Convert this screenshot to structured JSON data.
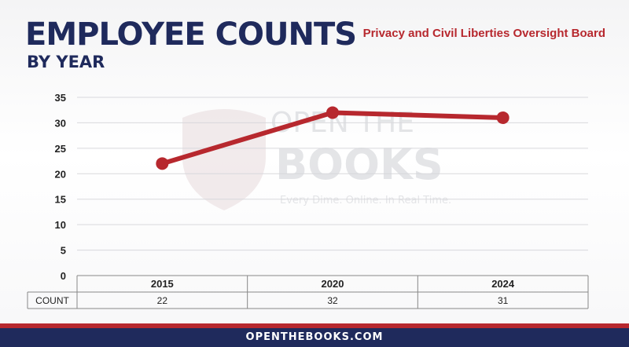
{
  "header": {
    "title": "EMPLOYEE COUNTS",
    "subtitle": "BY YEAR",
    "agency": "Privacy and Civil Liberties Oversight Board"
  },
  "watermark": {
    "line1": "OPEN THE",
    "line2": "BOOKS",
    "tagline": "Every Dime. Online. In Real Time.",
    "icon": "shield-flag-icon"
  },
  "chart_data": {
    "type": "line",
    "categories": [
      "2015",
      "2020",
      "2024"
    ],
    "series": [
      {
        "values": [
          22,
          32,
          31
        ]
      }
    ],
    "ylim": [
      0,
      35
    ],
    "yticks": [
      "0",
      "5",
      "10",
      "15",
      "20",
      "25",
      "30",
      "35"
    ],
    "table": {
      "row_label": "COUNT",
      "values": [
        "22",
        "32",
        "31"
      ]
    },
    "line_color": "#b7282e",
    "grid": true
  },
  "footer": {
    "text": "OPENTHEBOOKS.COM"
  }
}
